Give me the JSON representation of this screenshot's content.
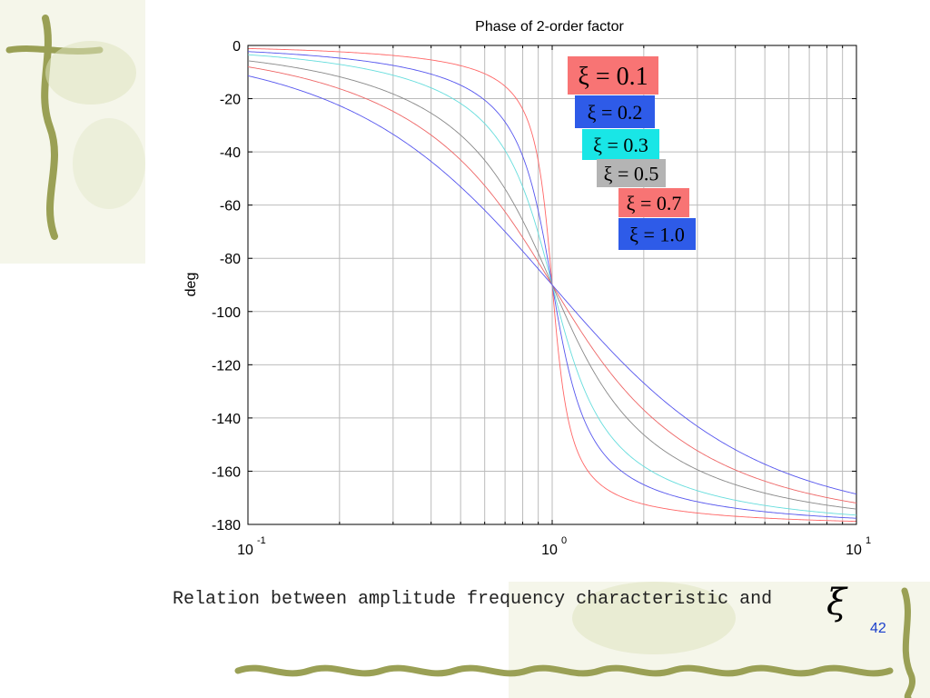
{
  "slide": {
    "caption": "Relation between amplitude frequency characteristic and",
    "caption_symbol": "ξ",
    "page_number": "42"
  },
  "chart_data": {
    "type": "line",
    "title": "Phase of 2-order factor",
    "xlabel": "",
    "ylabel": "deg",
    "x_scale": "log",
    "xlim": [
      0.1,
      10
    ],
    "ylim": [
      -180,
      0
    ],
    "grid": true,
    "x_ticks": [
      {
        "base": "10",
        "exp": "-1"
      },
      {
        "base": "10",
        "exp": "0"
      },
      {
        "base": "10",
        "exp": "1"
      }
    ],
    "y_ticks": [
      "0",
      "-20",
      "-40",
      "-60",
      "-80",
      "-100",
      "-120",
      "-140",
      "-160",
      "-180"
    ],
    "legend_placement": "center-right",
    "series": [
      {
        "name": "ξ = 0.1",
        "zeta": 0.1,
        "color": "#ff6666",
        "legend_bg": "#f87474"
      },
      {
        "name": "ξ = 0.2",
        "zeta": 0.2,
        "color": "#5555ee",
        "legend_bg": "#2e5be8"
      },
      {
        "name": "ξ = 0.3",
        "zeta": 0.3,
        "color": "#66dddd",
        "legend_bg": "#19e6e6"
      },
      {
        "name": "ξ = 0.5",
        "zeta": 0.5,
        "color": "#888888",
        "legend_bg": "#b4b4b4"
      },
      {
        "name": "ξ = 0.7",
        "zeta": 0.7,
        "color": "#ee6666",
        "legend_bg": "#f87474"
      },
      {
        "name": "ξ = 1.0",
        "zeta": 1.0,
        "color": "#5555ee",
        "legend_bg": "#2e5be8"
      }
    ]
  }
}
